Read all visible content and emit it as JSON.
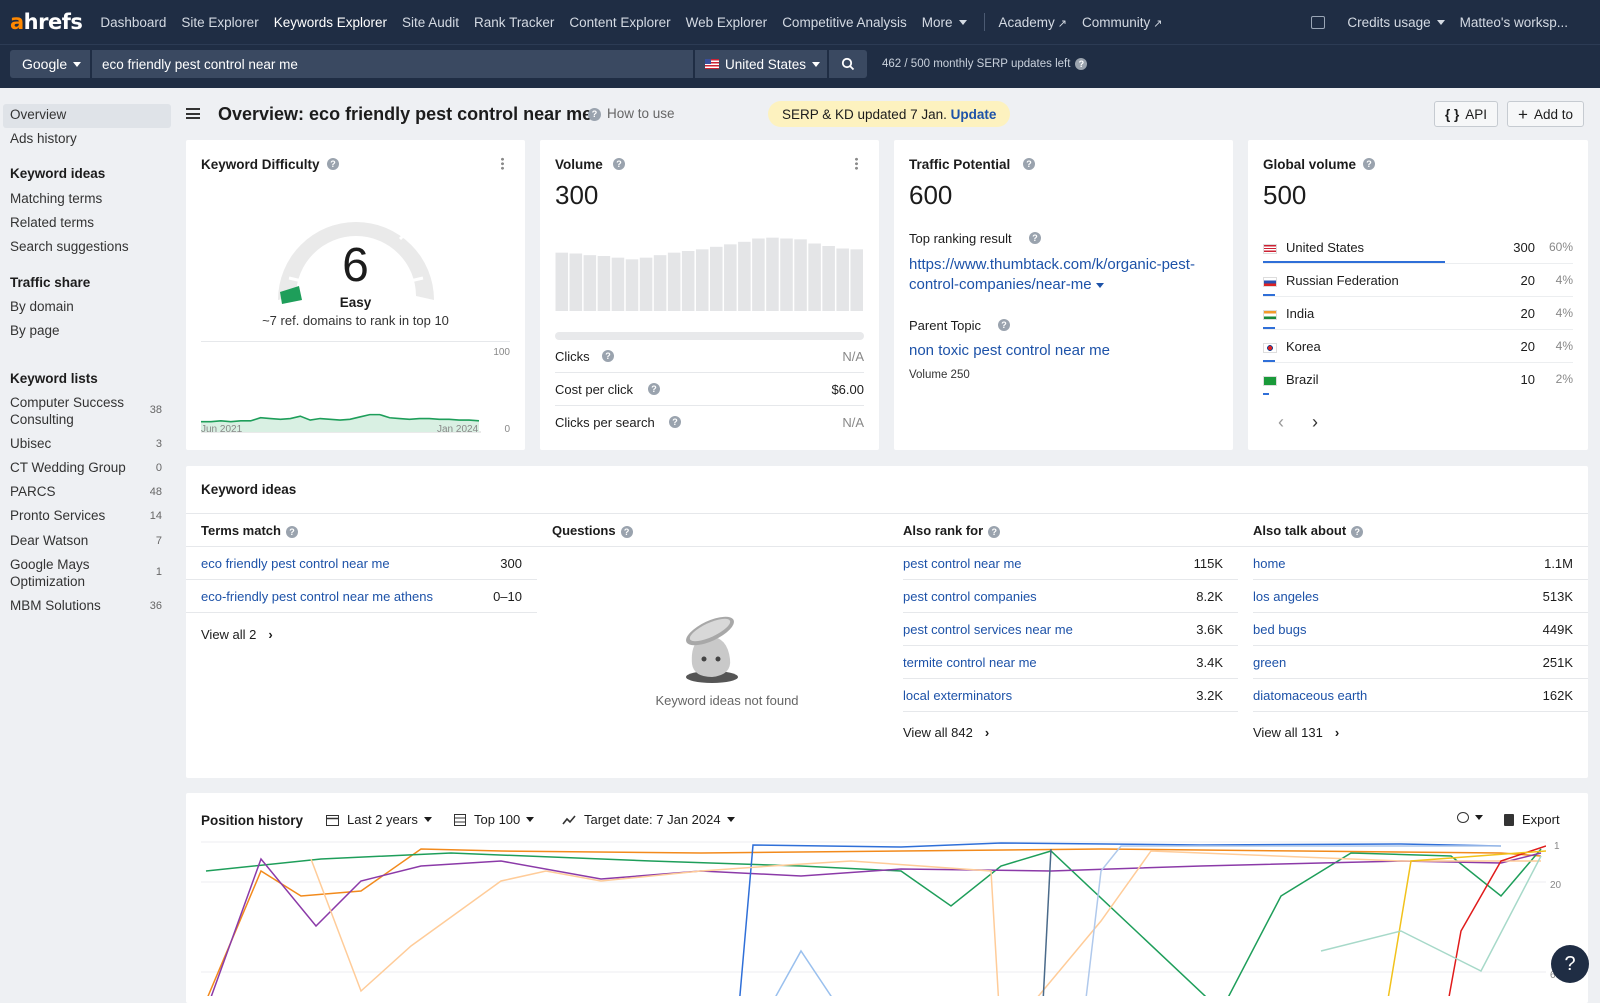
{
  "nav": {
    "logo_a": "a",
    "logo_rest": "hrefs",
    "items": [
      "Dashboard",
      "Site Explorer",
      "Keywords Explorer",
      "Site Audit",
      "Rank Tracker",
      "Content Explorer",
      "Web Explorer",
      "Competitive Analysis",
      "More"
    ],
    "academy": "Academy",
    "community": "Community",
    "credits": "Credits usage",
    "workspace": "Matteo's worksp..."
  },
  "search": {
    "engine": "Google",
    "query": "eco friendly pest control near me",
    "country": "United States",
    "updates_used": "462",
    "updates_sep": "/",
    "updates_total": "500",
    "updates_text": "monthly SERP updates left"
  },
  "sidebar": {
    "overview": "Overview",
    "ads_history": "Ads history",
    "keyword_ideas_head": "Keyword ideas",
    "matching": "Matching terms",
    "related": "Related terms",
    "suggestions": "Search suggestions",
    "traffic_head": "Traffic share",
    "by_domain": "By domain",
    "by_page": "By page",
    "lists_head": "Keyword lists",
    "lists": [
      {
        "name": "Computer Success",
        "name2": "Consulting",
        "count": "38"
      },
      {
        "name": "Ubisec",
        "count": "3"
      },
      {
        "name": "CT Wedding Group",
        "count": "0"
      },
      {
        "name": "PARCS",
        "count": "48"
      },
      {
        "name": "Pronto Services",
        "count": "14"
      },
      {
        "name": "Dear Watson",
        "count": "7"
      },
      {
        "name": "Google Mays",
        "name2": "Optimization",
        "count": "1"
      },
      {
        "name": "MBM Solutions",
        "count": "36"
      }
    ]
  },
  "header": {
    "title": "Overview: eco friendly pest control near me",
    "how_to": "How to use",
    "badge_text": "SERP & KD updated 7 Jan.",
    "badge_link": "Update",
    "api": "API",
    "add_to": "Add to"
  },
  "kd": {
    "label": "Keyword Difficulty",
    "value": "6",
    "rating": "Easy",
    "note": "~7 ref. domains to rank in top 10",
    "y_max": "100",
    "y_min": "0",
    "x_start": "Jun 2021",
    "x_end": "Jan 2024",
    "trend": [
      12,
      12,
      13,
      12,
      13,
      13,
      17,
      16,
      15,
      16,
      19,
      14,
      16,
      15,
      14,
      15,
      18,
      21,
      21,
      17,
      16,
      15,
      16,
      16,
      15,
      15,
      14,
      14,
      13
    ]
  },
  "volume": {
    "label": "Volume",
    "value": "300",
    "bars": [
      70,
      69,
      67,
      66,
      64,
      62,
      64,
      67,
      70,
      72,
      74,
      77,
      80,
      83,
      87,
      88,
      87,
      86,
      81,
      78,
      75,
      74
    ],
    "clicks_label": "Clicks",
    "clicks": "N/A",
    "cpc_label": "Cost per click",
    "cpc": "$6.00",
    "cps_label": "Clicks per search",
    "cps": "N/A"
  },
  "traffic": {
    "label": "Traffic Potential",
    "value": "600",
    "top_label": "Top ranking result",
    "top_url_1": "https://www.thumbtack.com/k/organic-pest-",
    "top_url_2": "control-companies/near-me",
    "parent_label": "Parent Topic",
    "parent": "non toxic pest control near me",
    "parent_volume": "Volume 250"
  },
  "global": {
    "label": "Global volume",
    "value": "500",
    "countries": [
      {
        "name": "United States",
        "value": "300",
        "pct": "60%",
        "share": 0.6
      },
      {
        "name": "Russian Federation",
        "value": "20",
        "pct": "4%",
        "share": 0.04
      },
      {
        "name": "India",
        "value": "20",
        "pct": "4%",
        "share": 0.04
      },
      {
        "name": "Korea",
        "value": "20",
        "pct": "4%",
        "share": 0.04
      },
      {
        "name": "Brazil",
        "value": "10",
        "pct": "2%",
        "share": 0.02
      }
    ]
  },
  "ideas": {
    "title": "Keyword ideas",
    "terms": {
      "label": "Terms match",
      "rows": [
        {
          "k": "eco friendly pest control near me",
          "v": "300"
        },
        {
          "k": "eco-friendly pest control near me athens",
          "v": "0–10"
        }
      ],
      "view": "View all 2"
    },
    "questions": {
      "label": "Questions",
      "empty": "Keyword ideas not found"
    },
    "also_rank": {
      "label": "Also rank for",
      "rows": [
        {
          "k": "pest control near me",
          "v": "115K"
        },
        {
          "k": "pest control companies",
          "v": "8.2K"
        },
        {
          "k": "pest control services near me",
          "v": "3.6K"
        },
        {
          "k": "termite control near me",
          "v": "3.4K"
        },
        {
          "k": "local exterminators",
          "v": "3.2K"
        }
      ],
      "view": "View all 842"
    },
    "also_talk": {
      "label": "Also talk about",
      "rows": [
        {
          "k": "home",
          "v": "1.1M"
        },
        {
          "k": "los angeles",
          "v": "513K"
        },
        {
          "k": "bed bugs",
          "v": "449K"
        },
        {
          "k": "green",
          "v": "251K"
        },
        {
          "k": "diatomaceous earth",
          "v": "162K"
        }
      ],
      "view": "View all 131"
    }
  },
  "position": {
    "title": "Position history",
    "range": "Last 2 years",
    "top": "Top 100",
    "target": "Target date: 7 Jan 2024",
    "export": "Export",
    "y_ticks": [
      "1",
      "20",
      "60"
    ]
  },
  "colors": {
    "nav_bg": "#1f2d44",
    "accent": "#ff8800",
    "link": "#1d52a8",
    "green": "#1e9e5a"
  }
}
